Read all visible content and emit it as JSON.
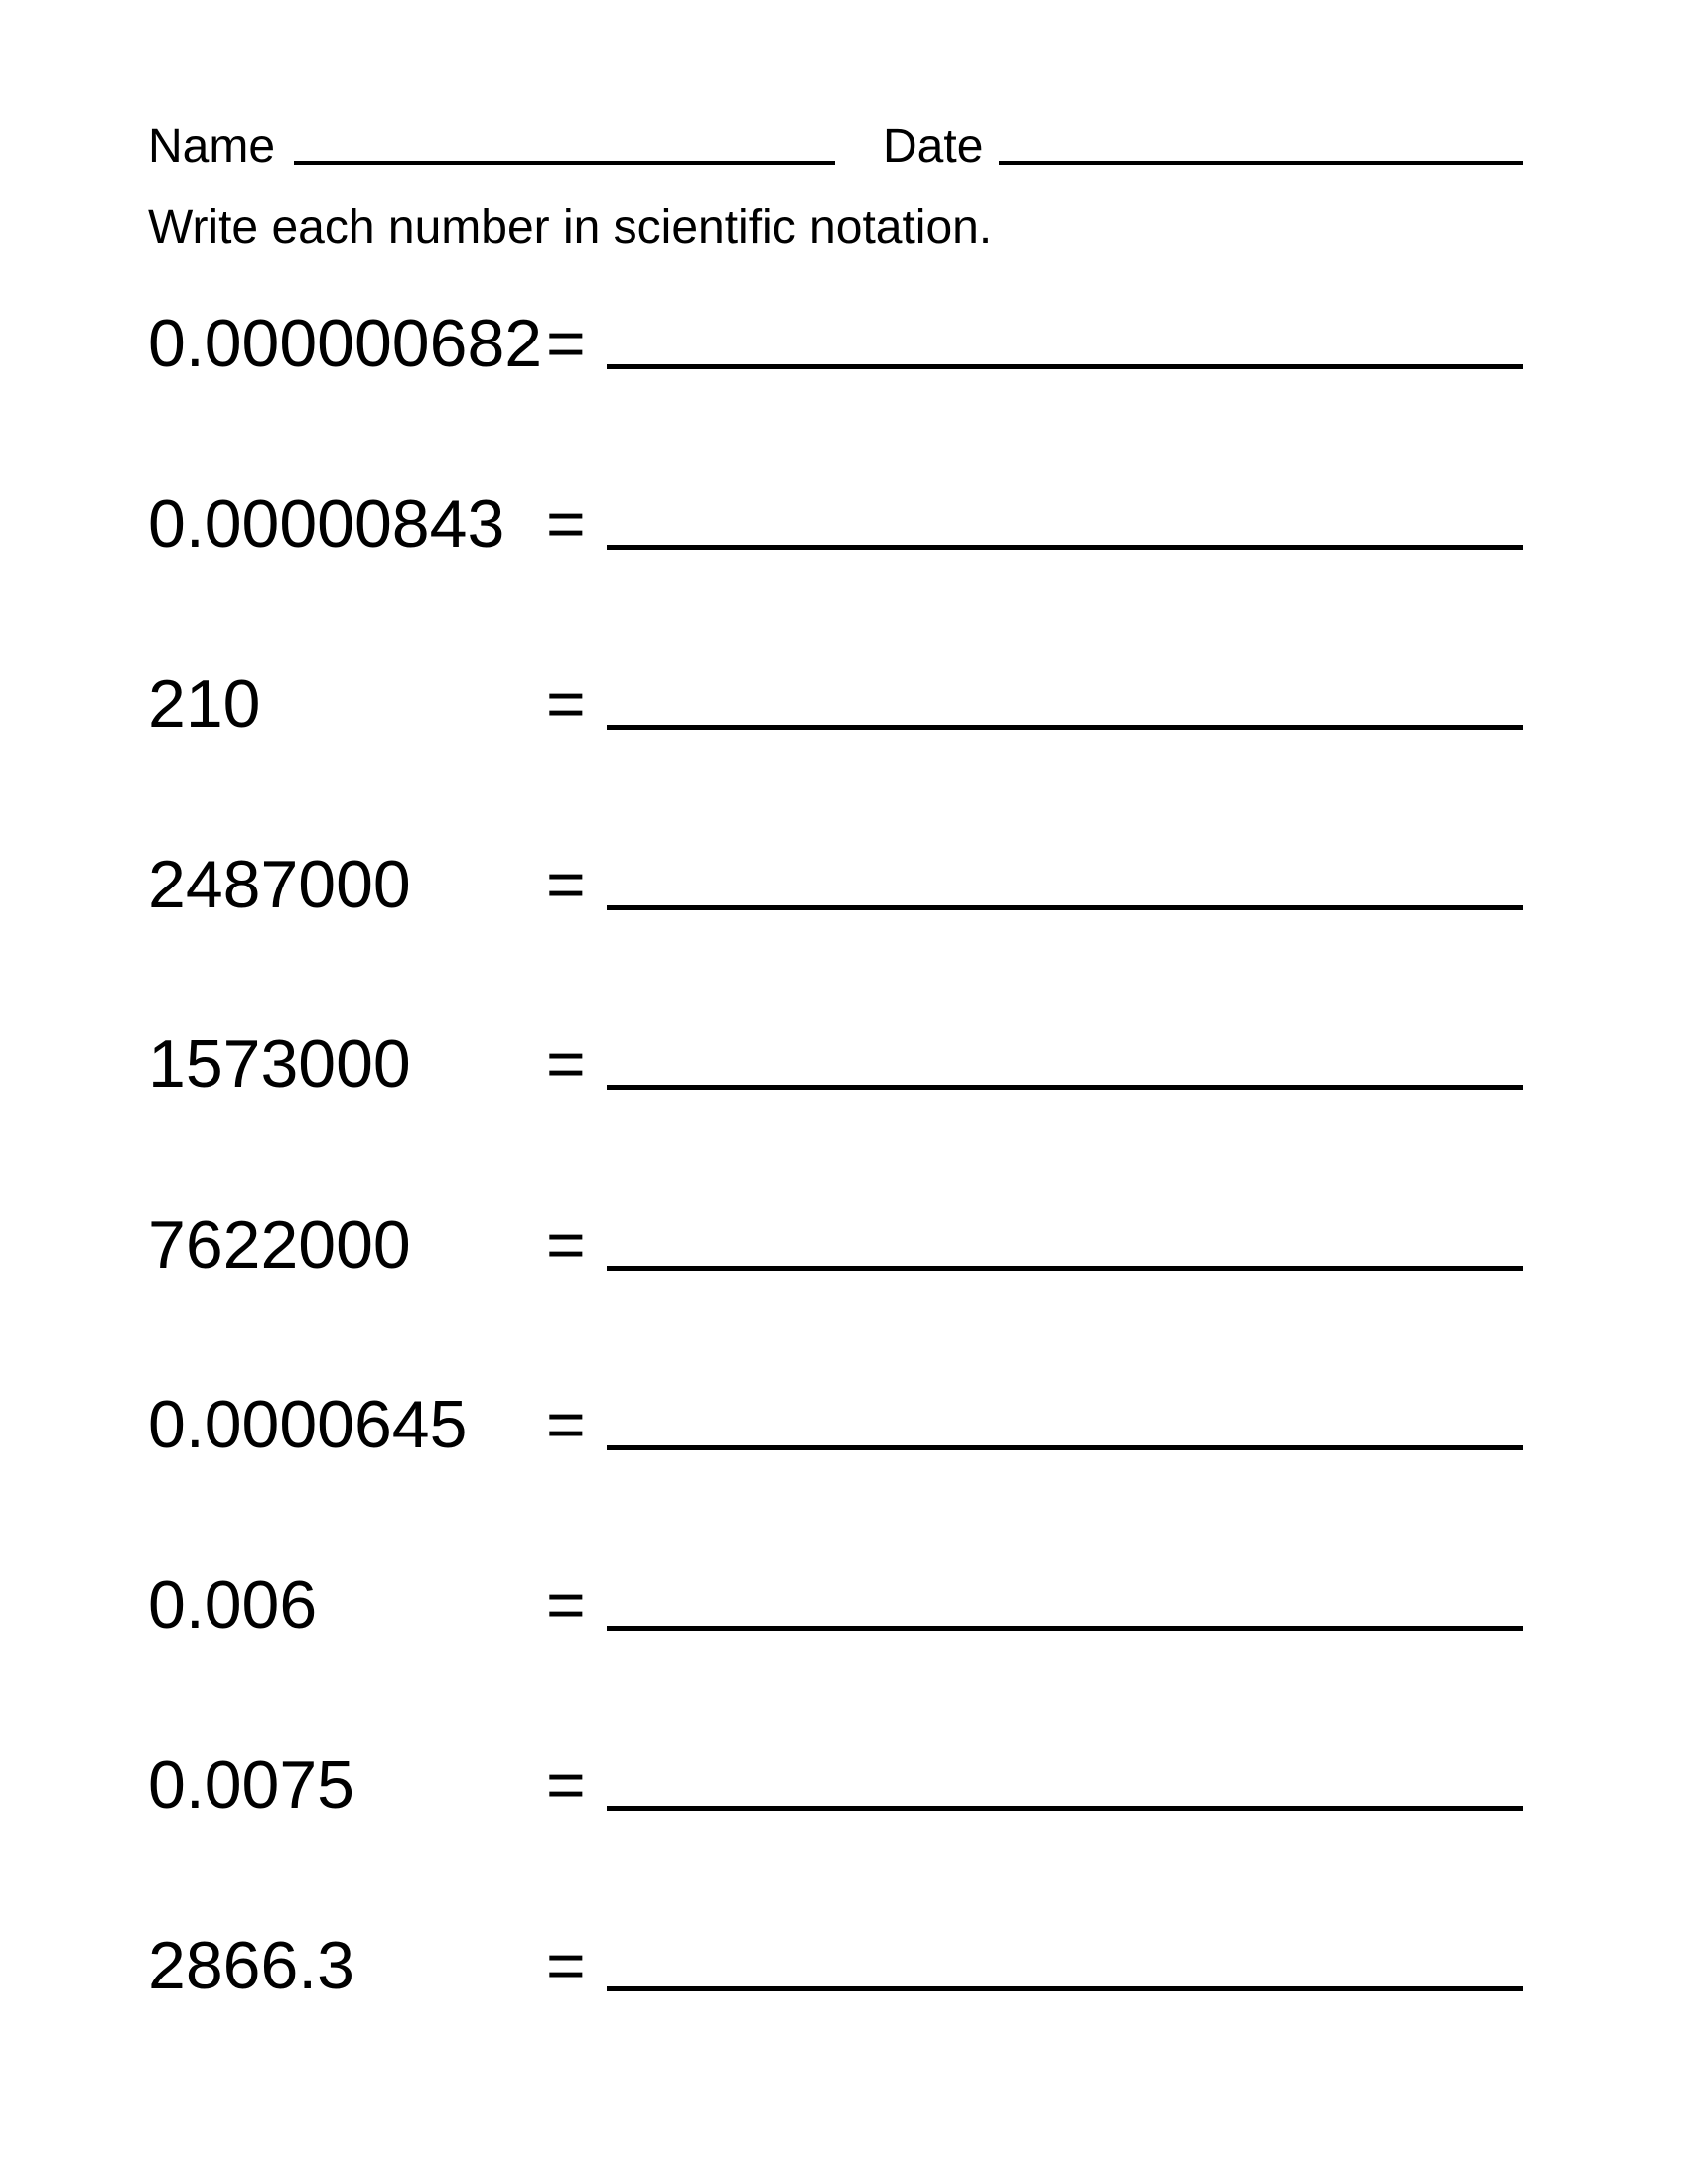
{
  "header": {
    "name_label": "Name",
    "date_label": "Date",
    "instructions": "Write each number in scientific notation."
  },
  "problems": [
    {
      "number": "0.000000682",
      "equals": "="
    },
    {
      "number": "0.00000843",
      "equals": "="
    },
    {
      "number": "210",
      "equals": "="
    },
    {
      "number": "2487000",
      "equals": "="
    },
    {
      "number": "1573000",
      "equals": "="
    },
    {
      "number": "7622000",
      "equals": "="
    },
    {
      "number": "0.0000645",
      "equals": "="
    },
    {
      "number": "0.006",
      "equals": "="
    },
    {
      "number": "0.0075",
      "equals": "="
    },
    {
      "number": "2866.3",
      "equals": "="
    }
  ]
}
